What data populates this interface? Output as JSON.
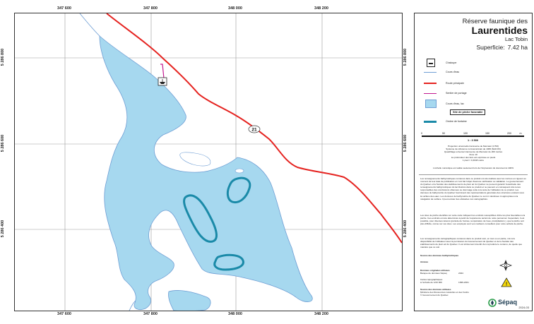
{
  "map": {
    "coords_top": [
      "347 600",
      "347 800",
      "348 000",
      "348 200"
    ],
    "coords_bottom": [
      "347 600",
      "347 800",
      "348 000",
      "348 200"
    ],
    "coords_left": [
      "5 286 800",
      "5 286 600",
      "5 286 400"
    ],
    "coords_right": [
      "5 286 800",
      "5 286 600",
      "5 286 400"
    ],
    "road_number": "21",
    "colors": {
      "water": "#a6d8ef",
      "road": "#e5221f",
      "contour": "#1a8aa8",
      "trail": "#c2188f",
      "stream": "#6f9ed4"
    }
  },
  "panel": {
    "reserve": "Réserve faunique des",
    "name": "Laurentides",
    "lake": "Lac Tobin",
    "area_label": "Superficie:",
    "area_value": "7.42 ha",
    "legend": [
      {
        "icon": "boat-launch-icon",
        "label": "Chaloupe"
      },
      {
        "icon": "stream-line-icon",
        "label": "Cours d'eau"
      },
      {
        "icon": "main-road-icon",
        "label": "Route principale"
      },
      {
        "icon": "portage-trail-icon",
        "label": "Sentier de portage"
      },
      {
        "icon": "water-area-icon",
        "label": "Cours d'eau, lac"
      },
      {
        "icon": "fishing-spot-icon",
        "label": "Site de pêche favorable"
      },
      {
        "icon": "depth-contour-icon",
        "label": "Ombre de fontaine"
      }
    ],
    "scale": {
      "ticks": [
        "0",
        "50",
        "100",
        "150",
        "200"
      ],
      "unit": "m",
      "ratio": "1 : 3 500"
    },
    "projection_text": [
      "Projection universelle transverse de Mercator (UTM)",
      "Système de référence nord-américain de 1983 (NAD 83)",
      "Quadrillage universel transverse de Mercator de 200 mètres",
      "Zone 19",
      "La profondeur des lacs est exprimée en pieds",
      "1 pied = 0,3048 mètre"
    ],
    "scale_note": "L'échelle numérique est valide seulement lors de l'impression du document à 100%",
    "paragraph_1": "Les renseignements bathymétriques contenus dans ce produit ont été réalisés avec les normes en rigueur au moment de leur date de publication et n'ont fait l'objet d'aucune vérification ou validation. Le gouvernement du Québec et la Société des établissements de plein air du Québec ne peuvent garantir l'exactitude des renseignements bathymétriques du lac illustrés dans ce produit et ne peuvent en conséquent être tenus responsables des conclusions obtenues ou dommage suite à la suite de l'utilisation de ce produit. Les données de bathymétrie du Québec fournissent des représentations générales des structures existant sous la surface des eaux. Les données de bathymétrie du Québec ne sont ni destinées ni appropriées à la navigation de surface. Il peut exister des obstacles non cartographiés.",
    "paragraph_2": "Les sites de pêche identifiés sur cette carte indiquent les endroits susceptibles d'être les plus favorables à la pêche. Ces endroits ont été déterminés à partir de l'expérience terrain de notre personnel. Cependant, il est possible, pour diverses raisons (période de l'année, température de l'eau, précipitations ), que la pêche soit plus difficile, même sur ces sites. Les employés sont vos meilleurs conseillers pour votre activité de pêche.",
    "paragraph_3": "Les renseignements cartographiques contenus dans ce produit sont, en tout ou en partie, mis à la disponibilité de l'utilisateur avec la permission du Gouvernement du Québec et de la Société des établissements de plein air du Québec. Il est strictement interdit d'en reproduire le contenu, de quelle que manière que ce soit.",
    "source_bathy_label": "Source des données bathymétriques",
    "annees_label": "Années",
    "donnees_label": "Données originales utilisées",
    "donnees_value": "Banque de données Sépaq",
    "donnees_year": "2024",
    "cartes_label": "Cartes topographiques",
    "cartes_value": "à l'échelle de 1/20 000",
    "cartes_year": "1996-2001",
    "source_used_label": "Source des données utilisées",
    "source_used_value_1": "Ministère des Ressources naturelles et des Forêts",
    "source_used_value_2": "© Gouvernement du Québec",
    "logo_text": "Sépaq",
    "year_code": "2024-03"
  }
}
